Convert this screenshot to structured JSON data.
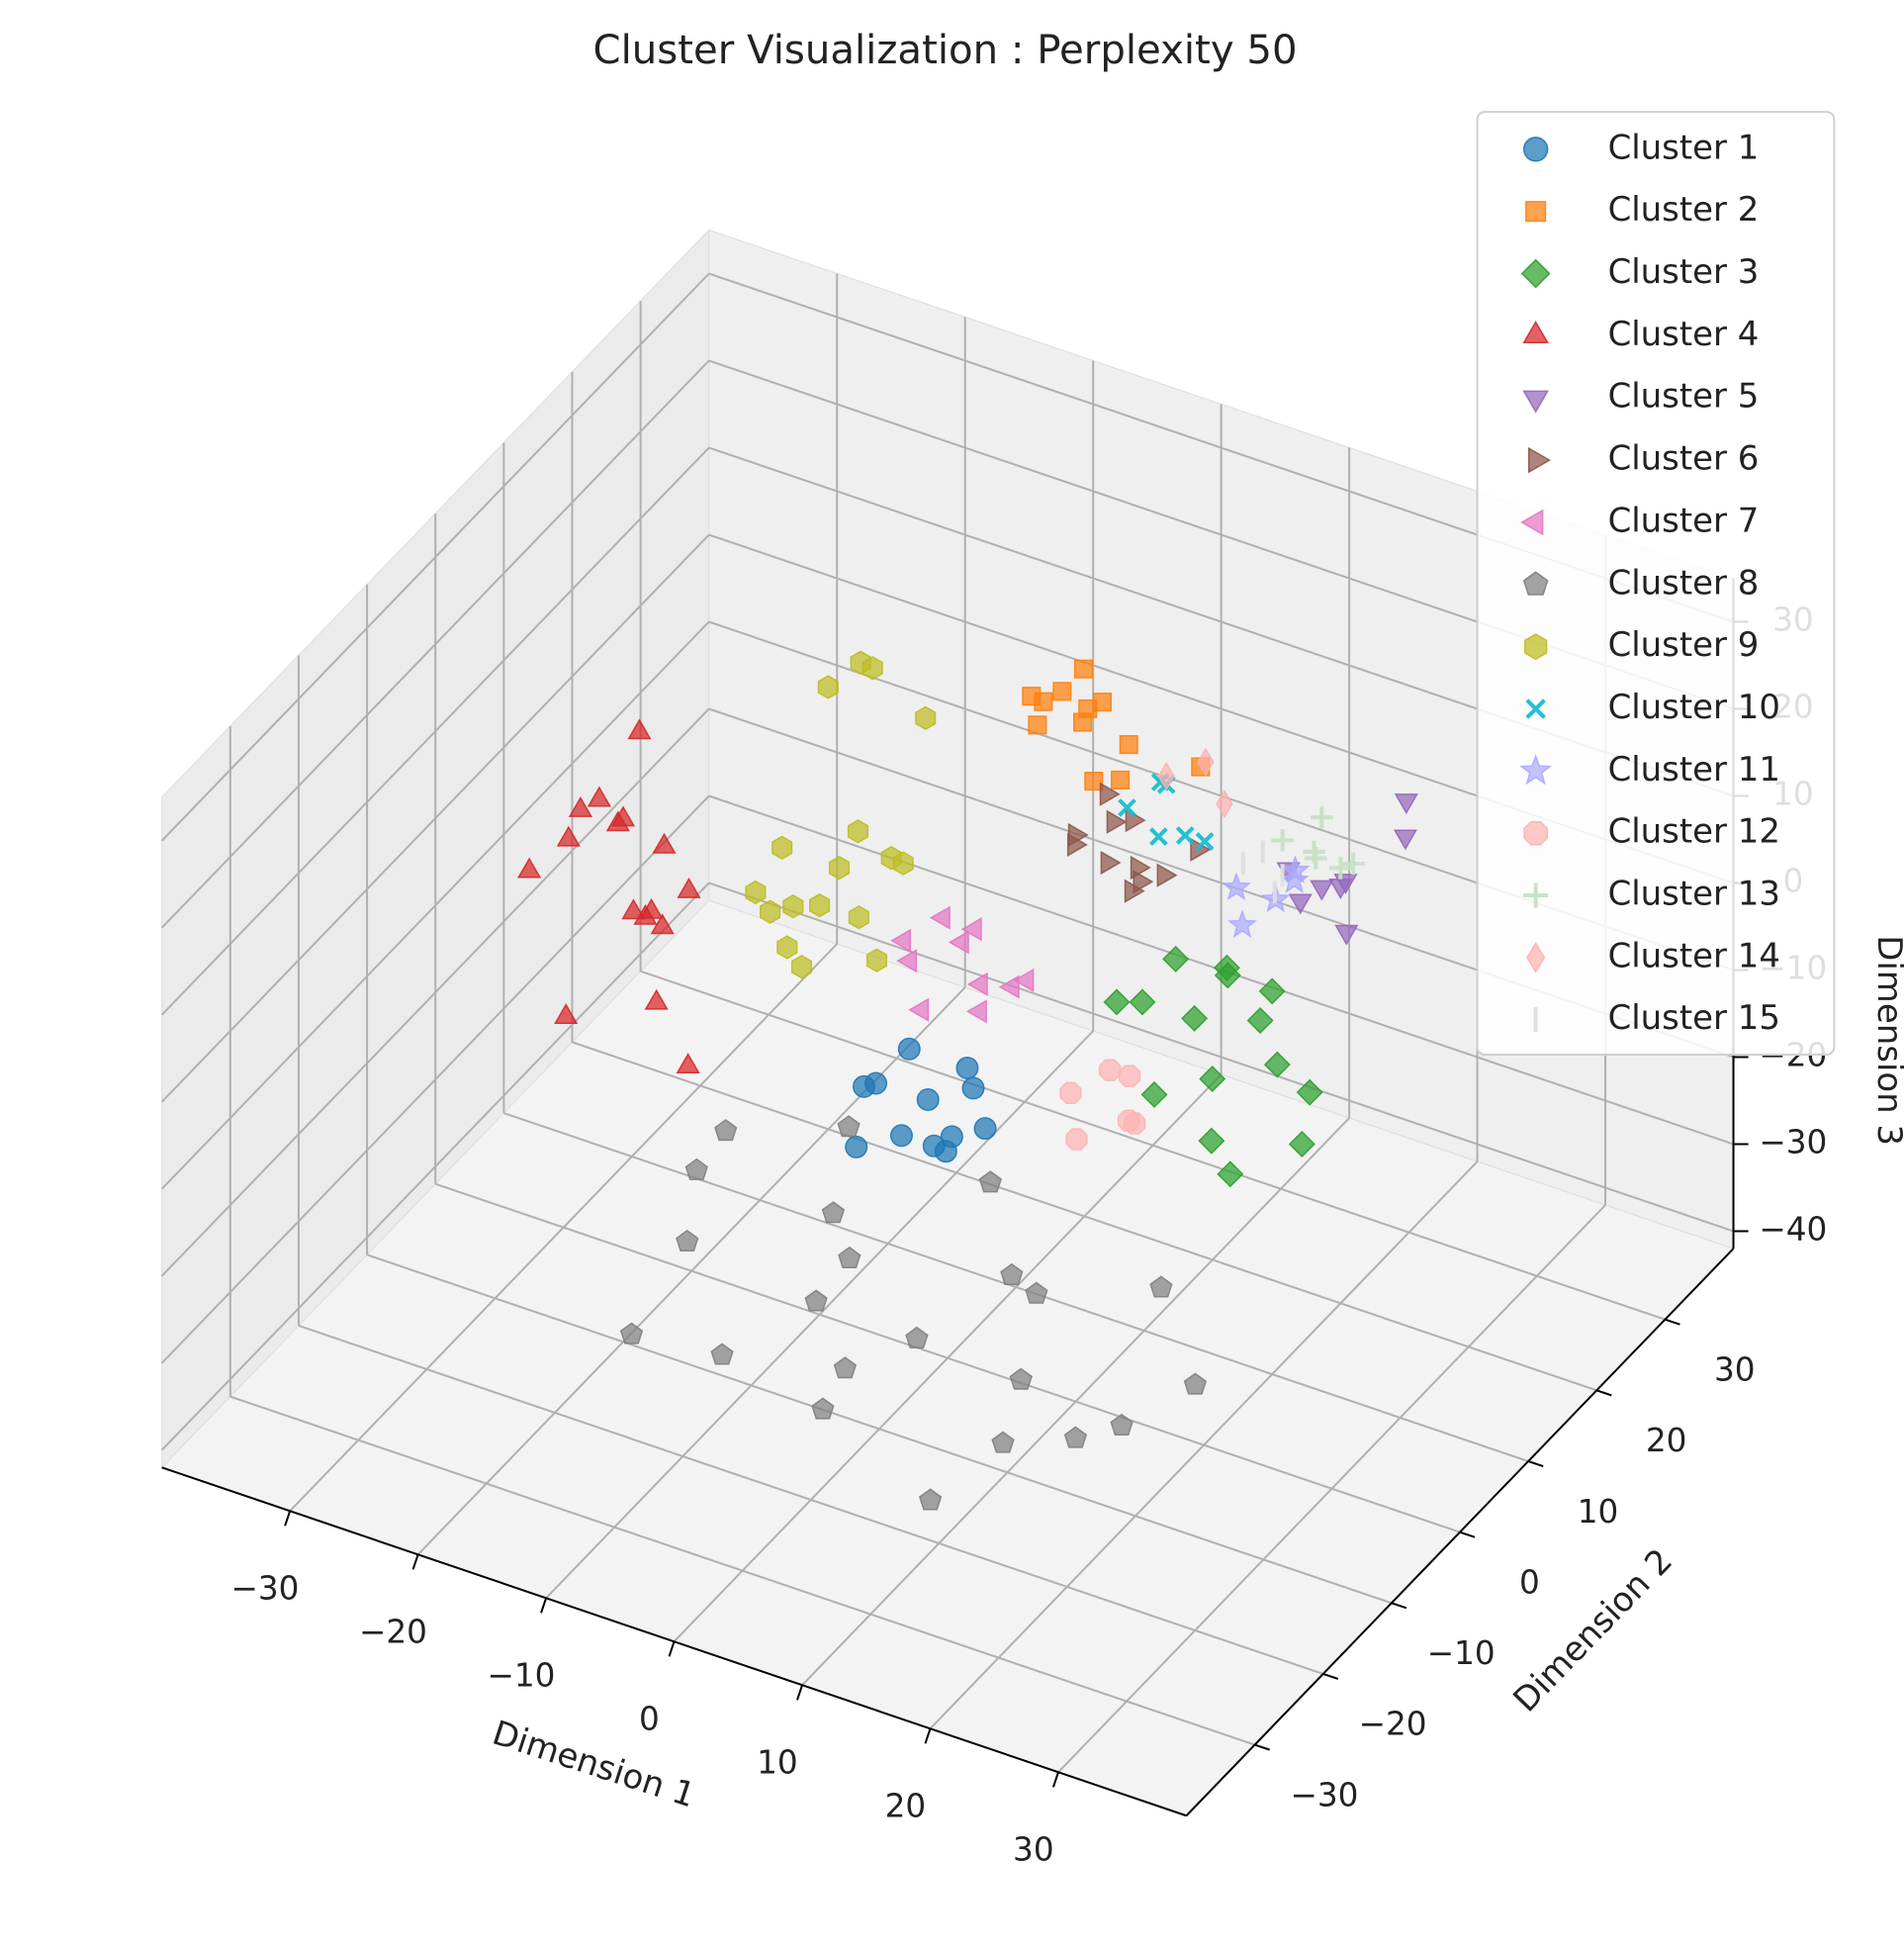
{
  "chart_data": {
    "type": "scatter3d",
    "title": "Cluster Visualization : Perplexity 50",
    "x_label": "Dimension 1",
    "y_label": "Dimension 2",
    "z_label": "Dimension 3",
    "xlim": [
      -40,
      40
    ],
    "ylim": [
      -40,
      40
    ],
    "zlim": [
      -42,
      35
    ],
    "xticks": [
      {
        "value": -30,
        "label": "−30"
      },
      {
        "value": -20,
        "label": "−20"
      },
      {
        "value": -10,
        "label": "−10"
      },
      0,
      10,
      20,
      30
    ],
    "yticks": [
      {
        "value": -30,
        "label": "−30"
      },
      {
        "value": -20,
        "label": "−20"
      },
      {
        "value": -10,
        "label": "−10"
      },
      0,
      10,
      20,
      30
    ],
    "zticks": [
      {
        "value": -40,
        "label": "−40"
      },
      {
        "value": -30,
        "label": "−30"
      },
      {
        "value": -20,
        "label": "−20"
      },
      {
        "value": -10,
        "label": "−10"
      },
      0,
      10,
      20,
      30
    ],
    "grid": true,
    "legend": "upper right",
    "series": [
      {
        "name": "Cluster 1",
        "color": "#1f77b4",
        "marker": "o",
        "x": [
          -4,
          -1,
          2,
          -3,
          0,
          3,
          -6,
          1,
          -2,
          4,
          -5,
          2
        ],
        "y": [
          -3,
          -1,
          -4,
          0,
          -2,
          -5,
          -1,
          1,
          -3,
          -2,
          -4,
          0
        ],
        "z": [
          -10,
          -12,
          -14,
          -8,
          -16,
          -11,
          -13,
          -9,
          -15,
          -12,
          -17,
          -10
        ]
      },
      {
        "name": "Cluster 2",
        "color": "#ff7f0e",
        "marker": "s",
        "x": [
          0,
          2,
          4,
          -1,
          3,
          5,
          1,
          6,
          -2,
          8,
          4,
          2
        ],
        "y": [
          14,
          16,
          13,
          15,
          17,
          12,
          18,
          14,
          16,
          22,
          19,
          13
        ],
        "z": [
          22,
          19,
          24,
          18,
          21,
          17,
          23,
          16,
          20,
          12,
          15,
          25
        ]
      },
      {
        "name": "Cluster 3",
        "color": "#2ca02c",
        "marker": "D",
        "x": [
          12,
          15,
          18,
          20,
          14,
          17,
          22,
          10,
          19,
          24,
          16,
          21,
          13,
          25,
          18
        ],
        "y": [
          6,
          8,
          5,
          10,
          4,
          9,
          7,
          6,
          3,
          8,
          11,
          2,
          9,
          5,
          12
        ],
        "z": [
          0,
          -2,
          -5,
          2,
          -8,
          4,
          -3,
          -1,
          -10,
          -6,
          1,
          -12,
          3,
          -9,
          -4
        ]
      },
      {
        "name": "Cluster 4",
        "color": "#d62728",
        "marker": "^",
        "x": [
          -24,
          -20,
          -18,
          -22,
          -26,
          -19,
          -23,
          -17,
          -25,
          -21,
          -28,
          -16,
          -20,
          -24,
          -30,
          -22
        ],
        "y": [
          -6,
          -4,
          -8,
          -3,
          -5,
          -7,
          -2,
          -6,
          -9,
          -4,
          -3,
          -8,
          -10,
          -1,
          -5,
          -7
        ],
        "z": [
          15,
          10,
          5,
          0,
          12,
          -5,
          20,
          8,
          -8,
          2,
          6,
          -10,
          18,
          -2,
          3,
          14
        ]
      },
      {
        "name": "Cluster 5",
        "color": "#9467bd",
        "marker": "v",
        "x": [
          17,
          20,
          22,
          18,
          21,
          24,
          19,
          23
        ],
        "y": [
          18,
          20,
          17,
          21,
          19,
          22,
          16,
          24
        ],
        "z": [
          8,
          6,
          10,
          4,
          2,
          12,
          7,
          14
        ]
      },
      {
        "name": "Cluster 6",
        "color": "#8c564b",
        "marker": ">",
        "x": [
          4,
          6,
          9,
          5,
          8,
          11,
          3,
          7,
          10,
          12,
          6
        ],
        "y": [
          11,
          13,
          10,
          14,
          12,
          11,
          13,
          15,
          9,
          14,
          12
        ],
        "z": [
          10,
          12,
          8,
          6,
          14,
          10,
          9,
          4,
          12,
          11,
          16
        ]
      },
      {
        "name": "Cluster 7",
        "color": "#e377c2",
        "marker": "<",
        "x": [
          -4,
          -1,
          2,
          -3,
          1,
          4,
          -2,
          0,
          3,
          -5
        ],
        "y": [
          2,
          4,
          1,
          5,
          3,
          2,
          0,
          4,
          6,
          3
        ],
        "z": [
          0,
          2,
          -2,
          3,
          -1,
          1,
          -3,
          4,
          -2,
          1
        ]
      },
      {
        "name": "Cluster 8",
        "color": "#7f7f7f",
        "marker": "p",
        "x": [
          -20,
          -15,
          -10,
          -5,
          0,
          5,
          10,
          15,
          20,
          -18,
          -8,
          2,
          12,
          22,
          -12,
          -2,
          8,
          18,
          -6,
          4,
          14,
          -14
        ],
        "y": [
          5,
          -10,
          2,
          -5,
          -15,
          0,
          -8,
          -20,
          -12,
          -3,
          -18,
          -22,
          -25,
          -5,
          8,
          10,
          -2,
          -15,
          -8,
          -12,
          5,
          -20
        ],
        "z": [
          -30,
          -28,
          -32,
          -29,
          -31,
          -30,
          -33,
          -28,
          -30,
          -27,
          -31,
          -29,
          -32,
          -30,
          -28,
          -31,
          -29,
          -30,
          -32,
          -28,
          -31,
          -30
        ]
      },
      {
        "name": "Cluster 9",
        "color": "#bcbd22",
        "marker": "h",
        "x": [
          -14,
          -10,
          -6,
          -12,
          -8,
          -4,
          -16,
          -11,
          -7,
          -13,
          -9,
          -5,
          -15,
          -12,
          -8,
          -10,
          -6
        ],
        "y": [
          2,
          0,
          3,
          -1,
          2,
          1,
          4,
          -2,
          0,
          3,
          1,
          -1,
          0,
          5,
          4,
          6,
          8
        ],
        "z": [
          8,
          5,
          10,
          0,
          3,
          12,
          -2,
          6,
          15,
          -6,
          9,
          2,
          4,
          25,
          30,
          28,
          22
        ]
      },
      {
        "name": "Cluster 10",
        "color": "#17becf",
        "marker": "x",
        "x": [
          6,
          8,
          10,
          9,
          7,
          11
        ],
        "y": [
          15,
          17,
          16,
          14,
          18,
          17
        ],
        "z": [
          12,
          14,
          10,
          11,
          13,
          9
        ]
      },
      {
        "name": "Cluster 11",
        "color": "#aaaaff",
        "marker": "*",
        "x": [
          14,
          16,
          18,
          15,
          17
        ],
        "y": [
          16,
          18,
          17,
          15,
          19
        ],
        "z": [
          6,
          4,
          8,
          3,
          7
        ]
      },
      {
        "name": "Cluster 12",
        "color": "#ffb3b3",
        "marker": "8",
        "x": [
          8,
          10,
          12,
          9,
          11,
          13
        ],
        "y": [
          3,
          5,
          4,
          2,
          6,
          3
        ],
        "z": [
          -10,
          -8,
          -12,
          -14,
          -9,
          -11
        ]
      },
      {
        "name": "Cluster 13",
        "color": "#c5e0c5",
        "marker": "+",
        "x": [
          16,
          18,
          20,
          17,
          19,
          21
        ],
        "y": [
          19,
          21,
          20,
          22,
          18,
          20
        ],
        "z": [
          10,
          12,
          8,
          6,
          11,
          9
        ]
      },
      {
        "name": "Cluster 14",
        "color": "#ffb0b0",
        "marker": "d",
        "x": [
          8,
          10,
          12
        ],
        "y": [
          17,
          19,
          18
        ],
        "z": [
          15,
          16,
          13
        ]
      },
      {
        "name": "Cluster 15",
        "color": "#dddddd",
        "marker": "|",
        "x": [
          14,
          16,
          15,
          17
        ],
        "y": [
          17,
          19,
          18,
          16
        ],
        "z": [
          8,
          6,
          9,
          7
        ]
      }
    ]
  }
}
